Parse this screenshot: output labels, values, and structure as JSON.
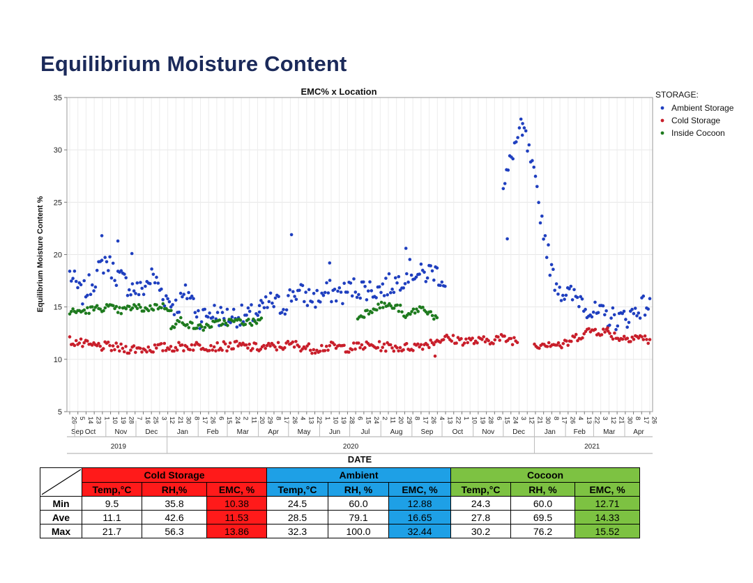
{
  "page_title": "Equilibrium Moisture Content",
  "colors": {
    "ambient": "#1f3fbf",
    "cold": "#c81e2a",
    "cocoon": "#1e7a1e",
    "cold_header": "#ff1a1a",
    "ambient_header": "#1ea0e6",
    "cocoon_header": "#7dc242"
  },
  "chart_data": {
    "type": "scatter",
    "title": "EMC% x Location",
    "xlabel": "DATE",
    "ylabel": "Equilibrium Moisture Content %",
    "ylim": [
      5,
      35
    ],
    "yticks": [
      5,
      10,
      15,
      20,
      25,
      30,
      35
    ],
    "grid": true,
    "legend_title": "STORAGE:",
    "legend_position": "right",
    "x_axis": {
      "start": "2019-09-26",
      "end": "2021-04-26",
      "day_ticks": [
        "26",
        "5",
        "14",
        "23",
        "1",
        "10",
        "19",
        "28",
        "7",
        "16",
        "25",
        "3",
        "12",
        "21",
        "30",
        "8",
        "17",
        "26",
        "6",
        "15",
        "24",
        "2",
        "11",
        "20",
        "29",
        "8",
        "17",
        "26",
        "4",
        "13",
        "22",
        "1",
        "10",
        "19",
        "28",
        "6",
        "15",
        "24",
        "2",
        "11",
        "20",
        "29",
        "8",
        "17",
        "26",
        "4",
        "13",
        "22",
        "1",
        "10",
        "19",
        "28",
        "6",
        "15",
        "24",
        "3",
        "12",
        "21",
        "30",
        "8",
        "17",
        "26",
        "4",
        "13",
        "22",
        "3",
        "12",
        "21",
        "30",
        "8",
        "17",
        "26"
      ],
      "months": [
        "Sep",
        "Oct",
        "Nov",
        "Dec",
        "Jan",
        "Feb",
        "Mar",
        "Apr",
        "May",
        "Jun",
        "Jul",
        "Aug",
        "Sep",
        "Oct",
        "Nov",
        "Dec",
        "Jan",
        "Feb",
        "Mar",
        "Apr"
      ],
      "years": [
        "2019",
        "2020",
        "2021"
      ]
    },
    "series": [
      {
        "name": "Ambient Storage",
        "color": "#1f3fbf",
        "segments": [
          {
            "start": "2019-09-26",
            "end": "2020-04-02",
            "values": [
              18.2,
              16.1,
              17.5,
              19.5,
              18.0,
              17.0,
              16.5,
              18.0,
              16.0,
              15.0,
              16.5,
              14.0,
              14.5,
              14.0,
              14.2,
              14.0,
              14.5
            ]
          },
          {
            "start": "2020-04-02",
            "end": "2020-10-04",
            "values": [
              14.5,
              15.5,
              15.0,
              16.5,
              16.0,
              15.8,
              16.5,
              16.2,
              16.8,
              16.8,
              16.6,
              17.0,
              17.5,
              18.5,
              18.0,
              18.5,
              17.5
            ]
          },
          {
            "start": "2020-12-01",
            "end": "2021-04-26",
            "values": [
              26.0,
              30.0,
              32.3,
              28.0,
              23.0,
              18.0,
              16.5,
              16.0,
              15.8,
              14.5,
              14.2,
              14.0,
              13.8,
              14.2,
              15.0,
              15.2
            ]
          }
        ],
        "outliers": [
          [
            "2019-10-28",
            21.8
          ],
          [
            "2019-11-13",
            21.3
          ],
          [
            "2019-11-27",
            20.1
          ],
          [
            "2020-05-04",
            21.9
          ],
          [
            "2020-06-11",
            19.2
          ],
          [
            "2020-08-26",
            20.6
          ],
          [
            "2020-12-05",
            21.5
          ],
          [
            "2020-12-20",
            31.4
          ]
        ]
      },
      {
        "name": "Cold Storage",
        "color": "#c81e2a",
        "segments": [
          {
            "start": "2019-09-26",
            "end": "2020-12-15",
            "values": [
              11.8,
              11.3,
              11.2,
              11.0,
              11.0,
              11.1,
              11.2,
              11.3,
              11.2,
              11.3,
              11.1,
              11.2,
              11.4,
              11.0,
              11.2,
              11.1,
              11.3,
              11.2,
              11.1,
              11.4,
              12.0,
              11.8,
              11.7,
              12.0,
              11.8
            ]
          },
          {
            "start": "2021-01-01",
            "end": "2021-04-26",
            "values": [
              11.4,
              11.6,
              11.3,
              12.2,
              12.8,
              12.6,
              12.0,
              12.2,
              11.8
            ]
          }
        ],
        "outliers": [
          [
            "2020-09-24",
            10.3
          ],
          [
            "2021-03-15",
            13.0
          ]
        ]
      },
      {
        "name": "Inside Cocoon",
        "color": "#1e7a1e",
        "segments": [
          {
            "start": "2019-09-26",
            "end": "2020-01-05",
            "values": [
              14.5,
              14.6,
              14.8,
              15.0,
              14.6,
              15.0,
              14.8,
              15.1,
              14.9
            ]
          },
          {
            "start": "2020-01-05",
            "end": "2020-04-04",
            "values": [
              12.8,
              13.8,
              13.2,
              13.0,
              13.3,
              13.5,
              13.6,
              13.6,
              13.5,
              13.8
            ]
          },
          {
            "start": "2020-07-09",
            "end": "2020-08-22",
            "values": [
              14.0,
              14.5,
              15.0,
              15.2,
              15.0,
              14.8
            ]
          },
          {
            "start": "2020-08-24",
            "end": "2020-09-26",
            "values": [
              13.8,
              14.5,
              14.9,
              14.6,
              13.8
            ]
          }
        ],
        "outliers": []
      }
    ]
  },
  "table": {
    "groups": [
      "Cold Storage",
      "Ambient",
      "Cocoon"
    ],
    "subheaders": [
      "Temp,°C",
      "RH,%",
      "EMC, %",
      "Temp,°C",
      "RH, %",
      "EMC, %",
      "Temp,°C",
      "RH, %",
      "EMC, %"
    ],
    "rows": [
      {
        "label": "Min",
        "cells": [
          "9.5",
          "35.8",
          "10.38",
          "24.5",
          "60.0",
          "12.88",
          "24.3",
          "60.0",
          "12.71"
        ]
      },
      {
        "label": "Ave",
        "cells": [
          "11.1",
          "42.6",
          "11.53",
          "28.5",
          "79.1",
          "16.65",
          "27.8",
          "69.5",
          "14.33"
        ]
      },
      {
        "label": "Max",
        "cells": [
          "21.7",
          "56.3",
          "13.86",
          "32.3",
          "100.0",
          "32.44",
          "30.2",
          "76.2",
          "15.52"
        ]
      }
    ]
  }
}
